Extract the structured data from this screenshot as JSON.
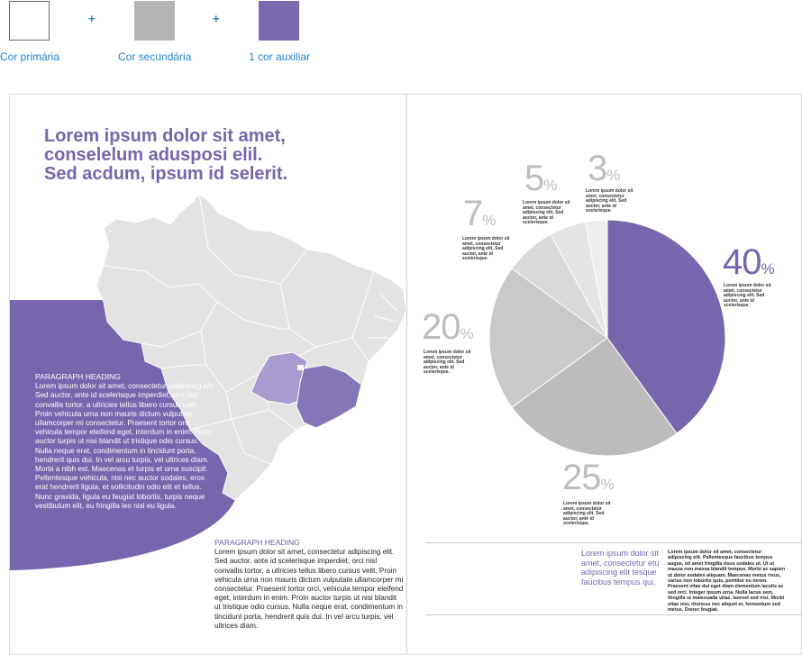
{
  "palette": {
    "primary_label": "Cor primária",
    "secondary_label": "Cor secundária",
    "auxiliary_label": "1 cor auxiliar",
    "plus": "+",
    "colors": {
      "primary": "#ffffff",
      "secondary": "#b4b4b4",
      "auxiliary": "#7b69ad"
    }
  },
  "left_page": {
    "headline_lines": [
      "Lorem ipsum dolor sit amet,",
      "conselelum adusposi elil.",
      "Sed acdum, ipsum id selerit."
    ],
    "paragraph_heading": "PARAGRAPH HEADING",
    "paragraph_left": "Lorem ipsum dolor sit amet, consectetur adipiscing elit. Sed auctor, ante id scelerisque imperdiet, orci nisl convallis tortor, a ultricies tellus libero cursus velit. Proin vehicula urna non mauris dictum vulputate ullamcorper mi consectetur. Praesent tortor orci, vehicula tempor eleifend eget, interdum in enim. Proin auctor turpis ut nisi blandit ut tristique odio cursus. Nulla neque erat, condimentum in tincidunt porta, hendrerit quis dui. In vel arcu turpis, vel ultrices diam. Morbi a nibh est. Maecenas et turpis et urna suscipit. Pellentesque vehicula, nisi nec auctor sodales, eros erat hendrerit ligula, et sollicitudin odio elit et tellus. Nunc gravida, ligula eu feugiat lobortis, turpis neque vestibulum elit, eu fringilla leo nisl eu ligula.",
    "paragraph_heading_2": "PARAGRAPH HEADING",
    "paragraph_right": "Lorem ipsum dolor sit amet, consectetur adipiscing elit. Sed auctor, ante id scelerisque imperdiet, orci nisl convallis tortor, a ultricies tellus libero cursus velit. Proin vehicula urna non mauris dictum vulputate ullamcorper mi consectetur. Praesent tortor orci, vehicula tempor eleifend eget, interdum in enim. Proin auctor turpis ut nisi blandit ut tristique odio cursus. Nulla neque erat, condimentum in tincidunt porta, hendrerit quis dui. In vel arcu turpis, vel ultrices diam.",
    "map_colors": {
      "land": "#e3e3e3",
      "border": "#ffffff",
      "highlight_dark": "#8576b8",
      "highlight_light": "#a89bd0",
      "dot": "#ffffff"
    },
    "band_color": "#7765ad"
  },
  "right_page": {
    "percent_sign": "%",
    "slice_note": "Lorem ipsum dolor sit amet, consectetur adipiscing elit. Sed auctor, ante id scelerisque.",
    "callout": "Lorem ipsum dolor sit amet, consectetur etu adipiscing elit tesque faucibus tempus qui.",
    "callout_body": "Lorem ipsum dolor sit amet, consectetur adipiscing elit. Pellentesque faucibus tempus augue, sit amet fringilla risus sodales ut. Ut ut massa non massa blandit tempus. Morbi ac sapien ut dolor sodales aliquam. Maecenas metus risus, varius non lobortis quis, porttitor eu lorem. Praesent vitae dui eget diam elementum iaculis ac sed orci. Integer ipsum urna. Nulla lacus sem, fringilla ut malesuada vitae, laoreet sed nisi. Morbi vitae nisi, rhoncus nec aliquet et, fermentum sed metus. Donec feugiat."
  },
  "chart_data": {
    "type": "pie",
    "values": [
      40,
      25,
      20,
      7,
      5,
      3
    ],
    "labels": [
      "40",
      "25",
      "20",
      "7",
      "5",
      "3"
    ],
    "colors": [
      "#7765ad",
      "#bcbcbc",
      "#c9c9c9",
      "#d9d9d9",
      "#e4e4e4",
      "#eeeeee"
    ]
  }
}
